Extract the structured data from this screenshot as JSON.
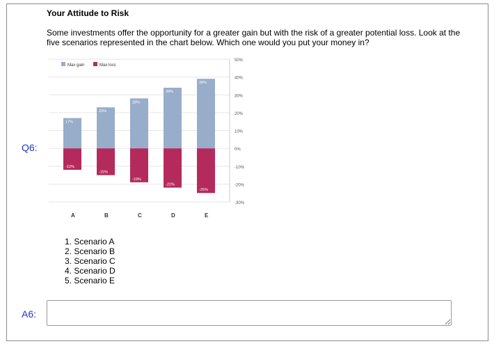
{
  "section_title": "Your Attitude to Risk",
  "question_text": "Some investments offer the opportunity for a greater gain but with the risk of a greater potential loss. Look at the five scenarios represented in the chart below. Which one would you put your money in?",
  "question_label": "Q6:",
  "answer_label": "A6:",
  "options": [
    "1. Scenario A",
    "2. Scenario B",
    "3. Scenario C",
    "4. Scenario D",
    "5. Scenario E"
  ],
  "answer": {
    "value": "",
    "placeholder": ""
  },
  "colors": {
    "gain": "#97adc9",
    "loss": "#b52a5c",
    "label_blue": "#2233cc"
  },
  "chart_data": {
    "type": "bar",
    "categories": [
      "A",
      "B",
      "C",
      "D",
      "E"
    ],
    "series": [
      {
        "name": "Max gain",
        "values": [
          17,
          23,
          28,
          34,
          39
        ],
        "labels": [
          "17%",
          "23%",
          "28%",
          "34%",
          "39%"
        ]
      },
      {
        "name": "Max loss",
        "values": [
          -12,
          -15,
          -19,
          -22,
          -25
        ],
        "labels": [
          "-12%",
          "-15%",
          "-19%",
          "-22%",
          "-25%"
        ]
      }
    ],
    "ylim": [
      -30,
      50
    ],
    "yticks": [
      50,
      40,
      30,
      20,
      10,
      0,
      -10,
      -20,
      -30
    ],
    "ytick_labels": [
      "50%",
      "40%",
      "30%",
      "20%",
      "10%",
      "0%",
      "-10%",
      "-20%",
      "-30%"
    ],
    "legend_position": "top-left",
    "grid": true
  }
}
